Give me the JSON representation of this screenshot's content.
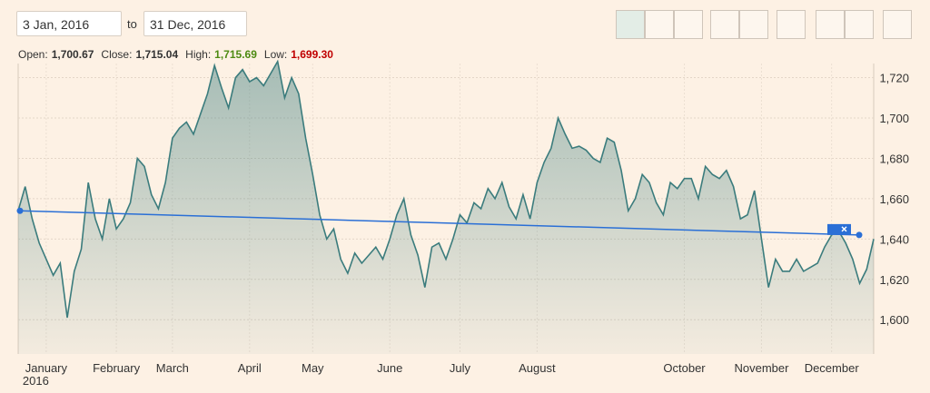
{
  "controls": {
    "from": "3 Jan, 2016",
    "to_word": "to",
    "until": "31 Dec, 2016",
    "ohlc": [
      {
        "label": "Open:",
        "value": "1,700.67"
      },
      {
        "label": "Close:",
        "value": "1,715.04"
      },
      {
        "label": "High:",
        "value": "1,715.69"
      },
      {
        "label": "Low:",
        "value": "1,699.30"
      }
    ]
  },
  "chart_data": {
    "type": "area",
    "color": "#3b7c7d",
    "year_label": "2016",
    "categories": [
      null,
      null,
      null,
      null,
      "January",
      null,
      null,
      null,
      null,
      null,
      null,
      null,
      null,
      null,
      "February",
      null,
      null,
      null,
      null,
      null,
      null,
      null,
      "March",
      null,
      null,
      null,
      null,
      null,
      null,
      null,
      null,
      null,
      null,
      "April",
      null,
      null,
      null,
      null,
      null,
      null,
      null,
      null,
      "May",
      null,
      null,
      null,
      null,
      null,
      null,
      null,
      null,
      null,
      null,
      "June",
      null,
      null,
      null,
      null,
      null,
      null,
      null,
      null,
      null,
      "July",
      null,
      null,
      null,
      null,
      null,
      null,
      null,
      null,
      null,
      null,
      "August",
      null,
      null,
      null,
      null,
      null,
      null,
      null,
      null,
      null,
      null,
      null,
      null,
      null,
      null,
      null,
      null,
      null,
      null,
      null,
      null,
      "October",
      null,
      null,
      null,
      null,
      null,
      null,
      null,
      null,
      null,
      null,
      "November",
      null,
      null,
      null,
      null,
      null,
      null,
      null,
      null,
      null,
      "December",
      null,
      null,
      null,
      null,
      null,
      null
    ],
    "values": [
      1654,
      1666,
      1650,
      1638,
      1630,
      1622,
      1628,
      1601,
      1624,
      1635,
      1668,
      1650,
      1640,
      1660,
      1645,
      1650,
      1658,
      1680,
      1676,
      1662,
      1655,
      1668,
      1690,
      1695,
      1698,
      1692,
      1702,
      1712,
      1726,
      1715,
      1705,
      1720,
      1724,
      1718,
      1720,
      1716,
      1722,
      1728,
      1710,
      1720,
      1712,
      1690,
      1672,
      1652,
      1640,
      1645,
      1630,
      1623,
      1633,
      1628,
      1632,
      1636,
      1630,
      1640,
      1652,
      1660,
      1642,
      1632,
      1616,
      1636,
      1638,
      1630,
      1640,
      1652,
      1648,
      1658,
      1655,
      1665,
      1660,
      1668,
      1656,
      1650,
      1662,
      1650,
      1668,
      1678,
      1685,
      1700,
      1692,
      1685,
      1686,
      1684,
      1680,
      1678,
      1690,
      1688,
      1674,
      1654,
      1660,
      1672,
      1668,
      1658,
      1652,
      1668,
      1665,
      1670,
      1670,
      1660,
      1676,
      1672,
      1670,
      1674,
      1666,
      1650,
      1652,
      1664,
      1640,
      1616,
      1630,
      1624,
      1624,
      1630,
      1624,
      1626,
      1628,
      1636,
      1642,
      1644,
      1638,
      1630,
      1618,
      1625,
      1640
    ],
    "trendline": {
      "color": "#2a6fd6",
      "start": 1654,
      "end": 1642
    },
    "ylim": [
      1583,
      1727
    ],
    "yticks": [
      {
        "value": 1600,
        "label": "1,600"
      },
      {
        "value": 1620,
        "label": "1,620"
      },
      {
        "value": 1640,
        "label": "1,640"
      },
      {
        "value": 1660,
        "label": "1,660"
      },
      {
        "value": 1680,
        "label": "1,680"
      },
      {
        "value": 1700,
        "label": "1,700"
      },
      {
        "value": 1720,
        "label": "1,720"
      }
    ],
    "grid": true
  }
}
